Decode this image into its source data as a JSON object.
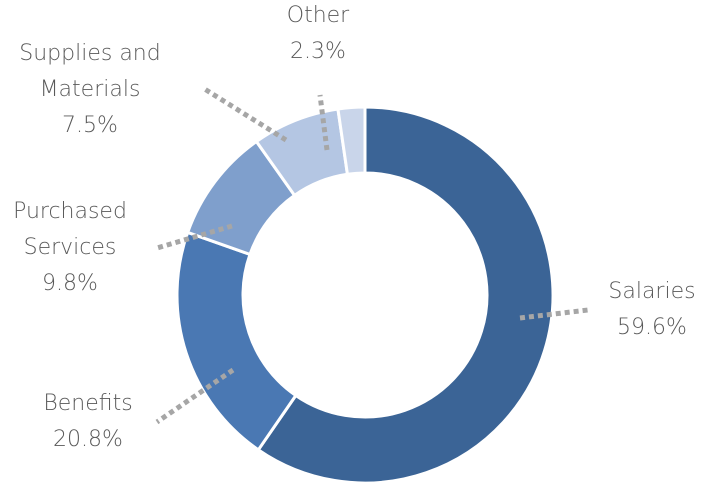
{
  "chart_data": {
    "type": "pie",
    "variant": "donut",
    "title": "",
    "categories": [
      "Salaries",
      "Benefits",
      "Purchased Services",
      "Supplies and Materials",
      "Other"
    ],
    "values": [
      59.6,
      20.8,
      9.8,
      7.5,
      2.3
    ],
    "value_labels": [
      "59.6%",
      "20.8%",
      "9.8%",
      "7.5%",
      "2.3%"
    ],
    "label_lines": [
      [
        "Salaries",
        "59.6%"
      ],
      [
        "Benefits",
        "20.8%"
      ],
      [
        "Purchased",
        "Services",
        "9.8%"
      ],
      [
        "Supplies and",
        "Materials",
        "7.5%"
      ],
      [
        "Other",
        "2.3%"
      ]
    ],
    "colors": [
      "#3b6496",
      "#4a78b3",
      "#7f9fcc",
      "#b4c6e3",
      "#c9d5ea"
    ],
    "legend": "none",
    "data_labels": "outside with leader lines"
  }
}
